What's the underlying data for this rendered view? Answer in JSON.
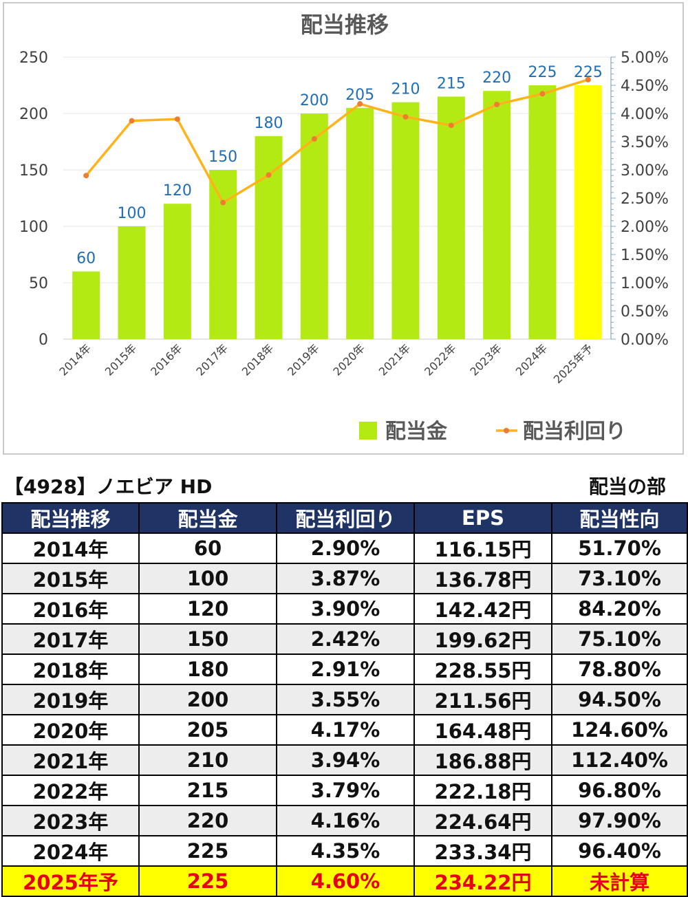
{
  "chart_data": {
    "type": "bar",
    "title": "配当推移",
    "categories": [
      "2014年",
      "2015年",
      "2016年",
      "2017年",
      "2018年",
      "2019年",
      "2020年",
      "2021年",
      "2022年",
      "2023年",
      "2024年",
      "2025年予"
    ],
    "series": [
      {
        "name": "配当金",
        "kind": "bar",
        "axis": "left",
        "values": [
          60,
          100,
          120,
          150,
          180,
          200,
          205,
          210,
          215,
          220,
          225,
          225
        ],
        "color": "#b3ea14",
        "highlight_last_color": "#ffff00"
      },
      {
        "name": "配当利回り",
        "kind": "line",
        "axis": "right",
        "values": [
          2.9,
          3.87,
          3.9,
          2.42,
          2.91,
          3.55,
          4.17,
          3.94,
          3.79,
          4.16,
          4.35,
          4.6
        ],
        "color": "#ffb31a",
        "marker_color": "#ed7d31"
      }
    ],
    "y_left": {
      "ticks": [
        "0",
        "50",
        "100",
        "150",
        "200",
        "250"
      ],
      "ylim": [
        0,
        250
      ]
    },
    "y_right": {
      "ticks": [
        "0.00%",
        "0.50%",
        "1.00%",
        "1.50%",
        "2.00%",
        "2.50%",
        "3.00%",
        "3.50%",
        "4.00%",
        "4.50%",
        "5.00%"
      ],
      "ylim": [
        0,
        5
      ]
    },
    "data_label_color": "#1f6eb5",
    "grid": true,
    "legend_position": "bottom-right"
  },
  "table": {
    "company": "【4928】ノエビア HD",
    "section": "配当の部",
    "headers": [
      "配当推移",
      "配当金",
      "配当利回り",
      "EPS",
      "配当性向"
    ],
    "rows": [
      [
        "2014年",
        "60",
        "2.90%",
        "116.15円",
        "51.70%"
      ],
      [
        "2015年",
        "100",
        "3.87%",
        "136.78円",
        "73.10%"
      ],
      [
        "2016年",
        "120",
        "3.90%",
        "142.42円",
        "84.20%"
      ],
      [
        "2017年",
        "150",
        "2.42%",
        "199.62円",
        "75.10%"
      ],
      [
        "2018年",
        "180",
        "2.91%",
        "228.55円",
        "78.80%"
      ],
      [
        "2019年",
        "200",
        "3.55%",
        "211.56円",
        "94.50%"
      ],
      [
        "2020年",
        "205",
        "4.17%",
        "164.48円",
        "124.60%"
      ],
      [
        "2021年",
        "210",
        "3.94%",
        "186.88円",
        "112.40%"
      ],
      [
        "2022年",
        "215",
        "3.79%",
        "222.18円",
        "96.80%"
      ],
      [
        "2023年",
        "220",
        "4.16%",
        "224.64円",
        "97.90%"
      ],
      [
        "2024年",
        "225",
        "4.35%",
        "233.34円",
        "96.40%"
      ],
      [
        "2025年予",
        "225",
        "4.60%",
        "234.22円",
        "未計算"
      ]
    ],
    "colors": {
      "header_bg": "#1f3464",
      "forecast_bg": "#ffff00",
      "forecast_text": "#e60012"
    }
  }
}
